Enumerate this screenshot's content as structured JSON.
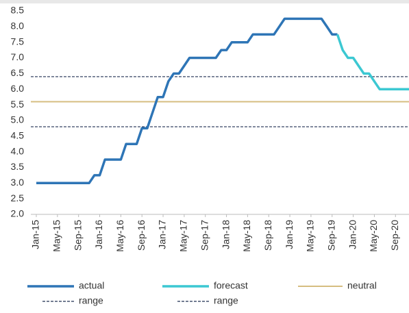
{
  "chart_data": {
    "type": "line",
    "categories": [
      "Jan-15",
      null,
      null,
      null,
      "May-15",
      null,
      null,
      null,
      "Sep-15",
      null,
      null,
      null,
      "Jan-16",
      null,
      null,
      null,
      "May-16",
      null,
      null,
      null,
      "Sep-16",
      null,
      null,
      null,
      "Jan-17",
      null,
      null,
      null,
      "May-17",
      null,
      null,
      null,
      "Sep-17",
      null,
      null,
      null,
      "Jan-18",
      null,
      null,
      null,
      "May-18",
      null,
      null,
      null,
      "Sep-18",
      null,
      null,
      null,
      "Jan-19",
      null,
      null,
      null,
      "May-19",
      null,
      null,
      null,
      "Sep-19",
      null,
      null,
      null,
      "Jan-20",
      null,
      null,
      null,
      "May-20",
      null,
      null,
      null,
      "Sep-20",
      null,
      null,
      null
    ],
    "series": [
      {
        "name": "actual",
        "color": "#2e75b6",
        "values": [
          3.0,
          3.0,
          3.0,
          3.0,
          3.0,
          3.0,
          3.0,
          3.0,
          3.0,
          3.0,
          3.0,
          3.25,
          3.25,
          3.75,
          3.75,
          3.75,
          3.75,
          4.25,
          4.25,
          4.25,
          4.75,
          4.75,
          5.25,
          5.75,
          5.75,
          6.25,
          6.5,
          6.5,
          6.75,
          7.0,
          7.0,
          7.0,
          7.0,
          7.0,
          7.0,
          7.25,
          7.25,
          7.5,
          7.5,
          7.5,
          7.5,
          7.75,
          7.75,
          7.75,
          7.75,
          7.75,
          8.0,
          8.25,
          8.25,
          8.25,
          8.25,
          8.25,
          8.25,
          8.25,
          8.25,
          8.0,
          7.75,
          7.75,
          null,
          null,
          null,
          null,
          null,
          null,
          null,
          null,
          null,
          null,
          null,
          null,
          null,
          null
        ]
      },
      {
        "name": "forecast",
        "color": "#3cc8d2",
        "values": [
          null,
          null,
          null,
          null,
          null,
          null,
          null,
          null,
          null,
          null,
          null,
          null,
          null,
          null,
          null,
          null,
          null,
          null,
          null,
          null,
          null,
          null,
          null,
          null,
          null,
          null,
          null,
          null,
          null,
          null,
          null,
          null,
          null,
          null,
          null,
          null,
          null,
          null,
          null,
          null,
          null,
          null,
          null,
          null,
          null,
          null,
          null,
          null,
          null,
          null,
          null,
          null,
          null,
          null,
          null,
          null,
          null,
          7.75,
          7.25,
          7.0,
          7.0,
          6.75,
          6.5,
          6.5,
          6.25,
          6.0,
          6.0,
          6.0,
          6.0,
          6.0,
          6.0,
          6.0
        ]
      }
    ],
    "reference_lines": [
      {
        "name": "neutral",
        "value": 5.6,
        "color": "#d6bd80",
        "dashed": false
      },
      {
        "name": "range",
        "value": 6.4,
        "color": "#1f2d50",
        "dashed": true
      },
      {
        "name": "range",
        "value": 4.8,
        "color": "#1f2d50",
        "dashed": true
      }
    ],
    "ylim": [
      2,
      8.5
    ],
    "yticks": [
      {
        "value": 2,
        "label": "2.0"
      },
      {
        "value": 2.5,
        "label": "2.5"
      },
      {
        "value": 3,
        "label": "3.0"
      },
      {
        "value": 3.5,
        "label": "3.5"
      },
      {
        "value": 4,
        "label": "4.0"
      },
      {
        "value": 4.5,
        "label": "4.5"
      },
      {
        "value": 5,
        "label": "5.0"
      },
      {
        "value": 5.5,
        "label": "5.5"
      },
      {
        "value": 6,
        "label": "6.0"
      },
      {
        "value": 6.5,
        "label": "6.5"
      },
      {
        "value": 7,
        "label": "7.0"
      },
      {
        "value": 7.5,
        "label": "7.5"
      },
      {
        "value": 8,
        "label": "8.0"
      },
      {
        "value": 8.5,
        "label": "8.5"
      }
    ],
    "grid": false
  }
}
